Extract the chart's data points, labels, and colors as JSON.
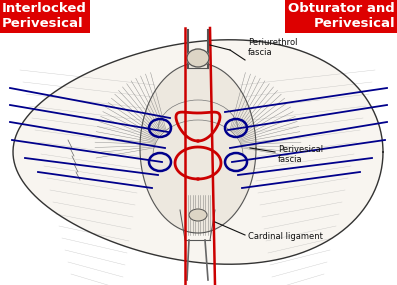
{
  "fig_width": 3.97,
  "fig_height": 2.85,
  "dpi": 100,
  "labels": {
    "interlocked": "Interlocked\nPerivesical",
    "obturator": "Obturator and\nPerivesical",
    "periurethral": "Periurethrol\nfascia",
    "perivesical": "Perivesical\nfascia",
    "cardinal": "Cardinal ligament"
  },
  "label_colors": {
    "interlocked_bg": "#dd0000",
    "obturator_bg": "#dd0000",
    "interlocked_text": "#ffffff",
    "obturator_text": "#ffffff",
    "other_text": "#000000"
  },
  "red_color": "#cc0000",
  "blue_color": "#00008b",
  "sketch_color": "#444444",
  "light_sketch": "#888888"
}
